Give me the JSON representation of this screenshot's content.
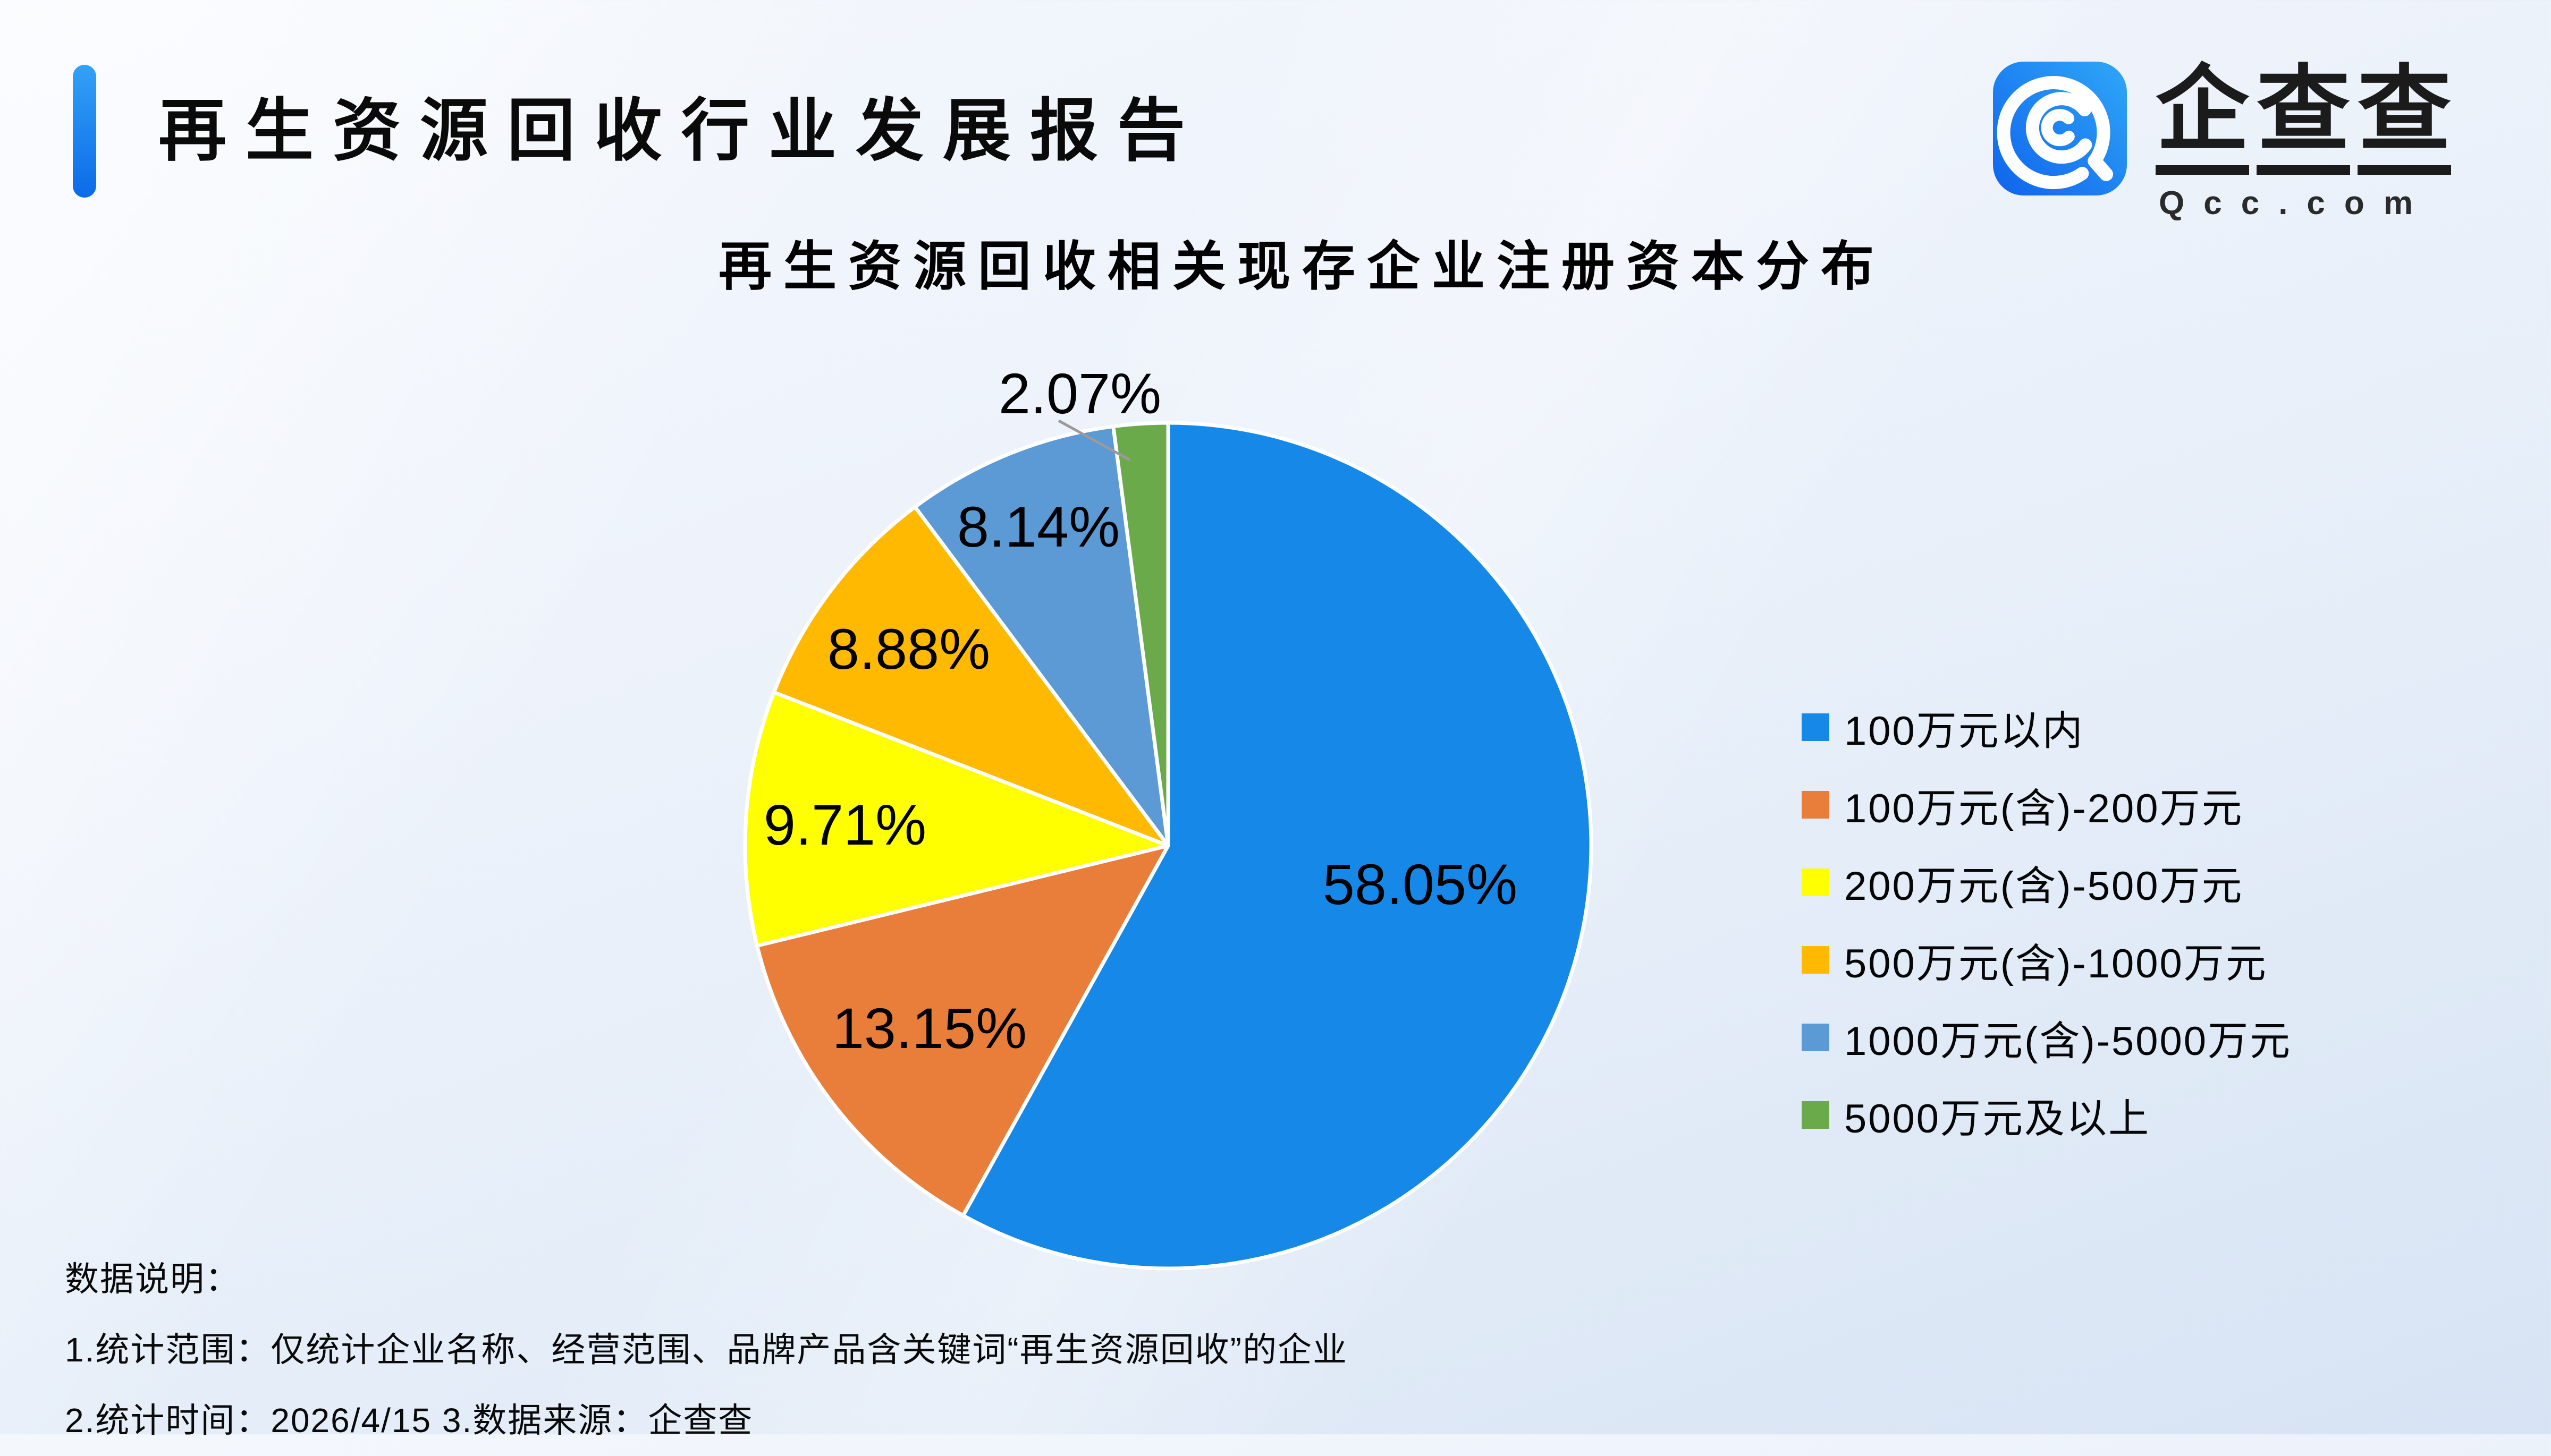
{
  "page": {
    "title": "再生资源回收行业发展报告",
    "logo": {
      "brand_chars": [
        "企",
        "查",
        "查"
      ],
      "domain": "Qcc.com",
      "icon": "qcc-swirl-magnifier",
      "icon_gradient": [
        "#2fa7f8",
        "#0f63ec"
      ]
    },
    "notes": {
      "heading": "数据说明：",
      "line1": "1.统计范围：仅统计企业名称、经营范围、品牌产品含关键词“再生资源回收”的企业",
      "line2": "2.统计时间：2026/4/15  3.数据来源：企查查"
    }
  },
  "chart_data": {
    "type": "pie",
    "title": "再生资源回收相关现存企业注册资本分布",
    "unit": "percent",
    "start_angle_deg": 0,
    "direction": "clockwise",
    "legend_position": "right",
    "categories": [
      "100万元以内",
      "100万元(含)-200万元",
      "200万元(含)-500万元",
      "500万元(含)-1000万元",
      "1000万元(含)-5000万元",
      "5000万元及以上"
    ],
    "values": [
      58.05,
      13.15,
      9.71,
      8.88,
      8.14,
      2.07
    ],
    "slices": [
      {
        "label": "100万元以内",
        "value": 58.05,
        "display": "58.05%",
        "color": "#1689E8"
      },
      {
        "label": "100万元(含)-200万元",
        "value": 13.15,
        "display": "13.15%",
        "color": "#E87E3A"
      },
      {
        "label": "200万元(含)-500万元",
        "value": 9.71,
        "display": "9.71%",
        "color": "#FFFF00"
      },
      {
        "label": "500万元(含)-1000万元",
        "value": 8.88,
        "display": "8.88%",
        "color": "#FFB900"
      },
      {
        "label": "1000万元(含)-5000万元",
        "value": 8.14,
        "display": "8.14%",
        "color": "#5B9AD5"
      },
      {
        "label": "5000万元及以上",
        "value": 2.07,
        "display": "2.07%",
        "color": "#6AAA4A"
      }
    ],
    "slice_borders": "#FFFFFF",
    "leader_line_color": "#9A9A9A",
    "label_color": "#000000"
  }
}
